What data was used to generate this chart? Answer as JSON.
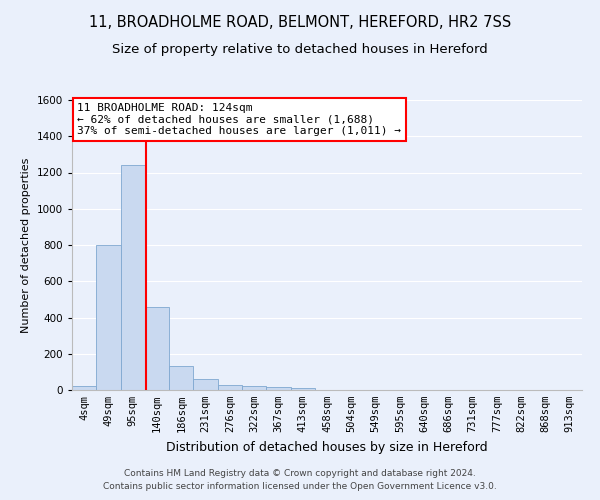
{
  "title": "11, BROADHOLME ROAD, BELMONT, HEREFORD, HR2 7SS",
  "subtitle": "Size of property relative to detached houses in Hereford",
  "xlabel": "Distribution of detached houses by size in Hereford",
  "ylabel": "Number of detached properties",
  "footer_line1": "Contains HM Land Registry data © Crown copyright and database right 2024.",
  "footer_line2": "Contains public sector information licensed under the Open Government Licence v3.0.",
  "bin_labels": [
    "4sqm",
    "49sqm",
    "95sqm",
    "140sqm",
    "186sqm",
    "231sqm",
    "276sqm",
    "322sqm",
    "367sqm",
    "413sqm",
    "458sqm",
    "504sqm",
    "549sqm",
    "595sqm",
    "640sqm",
    "686sqm",
    "731sqm",
    "777sqm",
    "822sqm",
    "868sqm",
    "913sqm"
  ],
  "bar_values": [
    20,
    800,
    1240,
    460,
    130,
    60,
    25,
    20,
    15,
    12,
    0,
    0,
    0,
    0,
    0,
    0,
    0,
    0,
    0,
    0,
    0
  ],
  "bar_color": "#c9d9f0",
  "bar_edge_color": "#7fa8d0",
  "property_line_x": 2.55,
  "property_line_color": "red",
  "annotation_line1": "11 BROADHOLME ROAD: 124sqm",
  "annotation_line2": "← 62% of detached houses are smaller (1,688)",
  "annotation_line3": "37% of semi-detached houses are larger (1,011) →",
  "annotation_box_color": "white",
  "annotation_box_edge_color": "red",
  "ylim": [
    0,
    1600
  ],
  "yticks": [
    0,
    200,
    400,
    600,
    800,
    1000,
    1200,
    1400,
    1600
  ],
  "background_color": "#eaf0fb",
  "grid_color": "white",
  "title_fontsize": 10.5,
  "subtitle_fontsize": 9.5,
  "ylabel_fontsize": 8,
  "xlabel_fontsize": 9,
  "annotation_fontsize": 8,
  "tick_fontsize": 7.5,
  "footer_fontsize": 6.5
}
